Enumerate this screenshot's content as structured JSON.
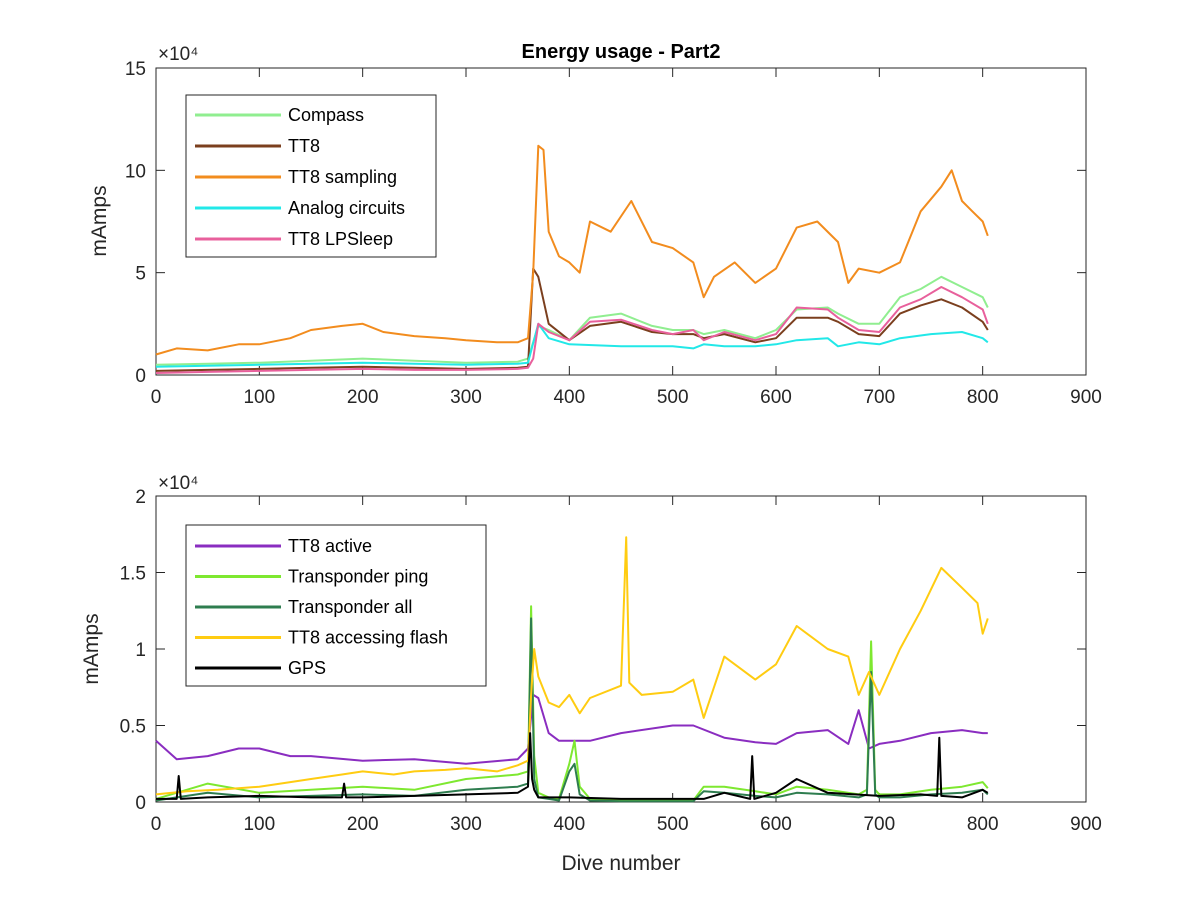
{
  "chart_data": [
    {
      "type": "line",
      "title": "Energy usage - Part2",
      "xlabel": "",
      "ylabel": "mAmps",
      "xlim": [
        0,
        900
      ],
      "ylim": [
        0,
        150000
      ],
      "exponent_label": "×10⁴",
      "xticks": [
        "0",
        "100",
        "200",
        "300",
        "400",
        "500",
        "600",
        "700",
        "800",
        "900"
      ],
      "yticks": [
        "0",
        "5",
        "10",
        "15"
      ],
      "ytick_values": [
        0,
        50000,
        100000,
        150000
      ],
      "legend_position": "top-left",
      "series": [
        {
          "name": "Compass",
          "color": "#90EE90",
          "x": [
            0,
            50,
            100,
            150,
            200,
            250,
            300,
            350,
            360,
            370,
            380,
            400,
            420,
            450,
            480,
            500,
            520,
            530,
            550,
            580,
            600,
            620,
            650,
            660,
            680,
            700,
            720,
            740,
            760,
            780,
            800,
            805
          ],
          "y": [
            5000,
            5500,
            6000,
            7000,
            8000,
            7000,
            6000,
            6500,
            8000,
            24000,
            22000,
            17000,
            28000,
            30000,
            24000,
            22000,
            22000,
            20000,
            22000,
            18000,
            22000,
            32000,
            33000,
            30000,
            25000,
            25000,
            38000,
            42000,
            48000,
            43000,
            38000,
            33000
          ]
        },
        {
          "name": "TT8",
          "color": "#7B3F1E",
          "x": [
            0,
            50,
            100,
            150,
            200,
            250,
            300,
            350,
            360,
            365,
            370,
            380,
            400,
            420,
            450,
            480,
            500,
            520,
            530,
            550,
            580,
            600,
            620,
            650,
            660,
            680,
            700,
            720,
            740,
            760,
            780,
            800,
            805
          ],
          "y": [
            2000,
            2500,
            3000,
            3500,
            4000,
            3500,
            3000,
            3500,
            4000,
            52000,
            48000,
            25000,
            17000,
            24000,
            26000,
            21000,
            20000,
            20000,
            18000,
            20000,
            16000,
            18000,
            28000,
            28000,
            26000,
            20000,
            19000,
            30000,
            34000,
            37000,
            33000,
            26000,
            22000
          ]
        },
        {
          "name": "TT8 sampling",
          "color": "#F28C1E",
          "x": [
            0,
            20,
            50,
            80,
            100,
            130,
            150,
            180,
            200,
            220,
            250,
            280,
            300,
            330,
            350,
            360,
            365,
            370,
            375,
            380,
            390,
            400,
            410,
            420,
            440,
            460,
            480,
            500,
            520,
            530,
            540,
            560,
            580,
            600,
            620,
            640,
            660,
            670,
            680,
            700,
            720,
            740,
            760,
            770,
            780,
            790,
            800,
            805
          ],
          "y": [
            10000,
            13000,
            12000,
            15000,
            15000,
            18000,
            22000,
            24000,
            25000,
            21000,
            19000,
            18000,
            17000,
            16000,
            16000,
            18000,
            50000,
            112000,
            110000,
            70000,
            58000,
            55000,
            50000,
            75000,
            70000,
            85000,
            65000,
            62000,
            55000,
            38000,
            48000,
            55000,
            45000,
            52000,
            72000,
            75000,
            65000,
            45000,
            52000,
            50000,
            55000,
            80000,
            92000,
            100000,
            85000,
            80000,
            75000,
            68000
          ]
        },
        {
          "name": "Analog circuits",
          "color": "#22E8E8",
          "x": [
            0,
            50,
            100,
            150,
            200,
            250,
            300,
            350,
            360,
            370,
            380,
            400,
            450,
            500,
            520,
            530,
            550,
            580,
            600,
            620,
            650,
            660,
            680,
            700,
            720,
            750,
            780,
            800,
            805
          ],
          "y": [
            4000,
            4500,
            5000,
            5500,
            6000,
            5500,
            5000,
            5500,
            6000,
            25000,
            18000,
            15000,
            14000,
            14000,
            13000,
            15000,
            14000,
            14000,
            15000,
            17000,
            18000,
            14000,
            16000,
            15000,
            18000,
            20000,
            21000,
            18000,
            16000
          ]
        },
        {
          "name": "TT8 LPSleep",
          "color": "#E8609C",
          "x": [
            0,
            50,
            100,
            150,
            200,
            250,
            300,
            350,
            360,
            365,
            370,
            380,
            400,
            420,
            450,
            480,
            500,
            520,
            530,
            550,
            580,
            600,
            620,
            650,
            660,
            680,
            700,
            720,
            740,
            760,
            780,
            800,
            805
          ],
          "y": [
            1000,
            1500,
            2000,
            2500,
            3000,
            2500,
            2500,
            3000,
            3500,
            8000,
            25000,
            21000,
            17000,
            26000,
            27000,
            22000,
            20000,
            22000,
            17000,
            21000,
            17000,
            20000,
            33000,
            32000,
            28000,
            22000,
            21000,
            33000,
            37000,
            43000,
            38000,
            32000,
            25000
          ]
        }
      ]
    },
    {
      "type": "line",
      "title": "",
      "xlabel": "Dive number",
      "ylabel": "mAmps",
      "xlim": [
        0,
        900
      ],
      "ylim": [
        0,
        20000
      ],
      "exponent_label": "×10⁴",
      "xticks": [
        "0",
        "100",
        "200",
        "300",
        "400",
        "500",
        "600",
        "700",
        "800",
        "900"
      ],
      "yticks": [
        "0",
        "0.5",
        "1",
        "1.5",
        "2"
      ],
      "ytick_values": [
        0,
        5000,
        10000,
        15000,
        20000
      ],
      "legend_position": "top-left",
      "series": [
        {
          "name": "TT8 active",
          "color": "#8A2DC0",
          "x": [
            0,
            20,
            50,
            80,
            100,
            130,
            150,
            200,
            250,
            300,
            350,
            360,
            365,
            370,
            380,
            390,
            400,
            420,
            450,
            500,
            520,
            550,
            580,
            600,
            620,
            650,
            670,
            680,
            690,
            700,
            720,
            750,
            780,
            800,
            805
          ],
          "y": [
            4000,
            2800,
            3000,
            3500,
            3500,
            3000,
            3000,
            2700,
            2800,
            2500,
            2800,
            3500,
            7000,
            6800,
            4500,
            4000,
            4000,
            4000,
            4500,
            5000,
            5000,
            4200,
            3900,
            3800,
            4500,
            4700,
            3800,
            6000,
            3500,
            3800,
            4000,
            4500,
            4700,
            4500,
            4500
          ]
        },
        {
          "name": "Transponder ping",
          "color": "#7EE830",
          "x": [
            0,
            50,
            100,
            150,
            200,
            250,
            300,
            350,
            360,
            363,
            366,
            370,
            380,
            390,
            400,
            405,
            410,
            420,
            450,
            500,
            520,
            530,
            550,
            580,
            600,
            620,
            650,
            680,
            688,
            692,
            696,
            700,
            720,
            750,
            780,
            800,
            805
          ],
          "y": [
            200,
            1200,
            600,
            800,
            1000,
            800,
            1500,
            1800,
            2000,
            12800,
            3000,
            600,
            300,
            200,
            2500,
            4000,
            1000,
            200,
            100,
            100,
            100,
            1000,
            1000,
            700,
            500,
            1000,
            800,
            500,
            800,
            10500,
            800,
            500,
            500,
            800,
            1000,
            1300,
            900
          ]
        },
        {
          "name": "Transponder all",
          "color": "#2E7D4F",
          "x": [
            0,
            50,
            100,
            150,
            200,
            250,
            300,
            350,
            360,
            363,
            366,
            370,
            380,
            390,
            400,
            405,
            410,
            420,
            450,
            500,
            520,
            530,
            550,
            580,
            600,
            620,
            650,
            680,
            688,
            692,
            696,
            700,
            720,
            750,
            780,
            800,
            805
          ],
          "y": [
            100,
            600,
            300,
            400,
            500,
            400,
            800,
            1000,
            1200,
            12000,
            1500,
            300,
            200,
            100,
            2000,
            2500,
            500,
            100,
            50,
            50,
            50,
            700,
            600,
            400,
            300,
            600,
            500,
            300,
            500,
            8500,
            500,
            300,
            300,
            500,
            600,
            800,
            500
          ]
        },
        {
          "name": "TT8 accessing flash",
          "color": "#FFCC11",
          "x": [
            0,
            30,
            60,
            100,
            130,
            150,
            180,
            200,
            230,
            250,
            280,
            300,
            330,
            350,
            360,
            363,
            366,
            370,
            380,
            390,
            400,
            410,
            420,
            450,
            455,
            458,
            470,
            500,
            520,
            530,
            550,
            580,
            600,
            620,
            650,
            670,
            680,
            690,
            700,
            720,
            740,
            760,
            780,
            795,
            800,
            805
          ],
          "y": [
            500,
            700,
            800,
            1000,
            1300,
            1500,
            1800,
            2000,
            1800,
            2000,
            2100,
            2200,
            2000,
            2400,
            2700,
            7000,
            10000,
            8200,
            6500,
            6200,
            7000,
            5800,
            6800,
            7600,
            17300,
            7800,
            7000,
            7200,
            8000,
            5500,
            9500,
            8000,
            9000,
            11500,
            10000,
            9500,
            7000,
            8500,
            7000,
            10000,
            12500,
            15300,
            14000,
            13000,
            11000,
            12000
          ]
        },
        {
          "name": "GPS",
          "color": "#000000",
          "x": [
            0,
            20,
            22,
            24,
            50,
            100,
            150,
            180,
            182,
            184,
            200,
            250,
            300,
            350,
            360,
            362,
            364,
            366,
            370,
            400,
            450,
            500,
            530,
            550,
            575,
            577,
            579,
            600,
            620,
            640,
            650,
            700,
            740,
            756,
            758,
            760,
            780,
            800,
            805
          ],
          "y": [
            200,
            200,
            1700,
            200,
            300,
            400,
            300,
            300,
            1200,
            300,
            300,
            400,
            500,
            600,
            1000,
            4500,
            1500,
            800,
            300,
            300,
            200,
            200,
            200,
            600,
            200,
            3000,
            200,
            600,
            1500,
            900,
            600,
            400,
            500,
            400,
            4200,
            400,
            300,
            800,
            600
          ]
        }
      ]
    }
  ]
}
